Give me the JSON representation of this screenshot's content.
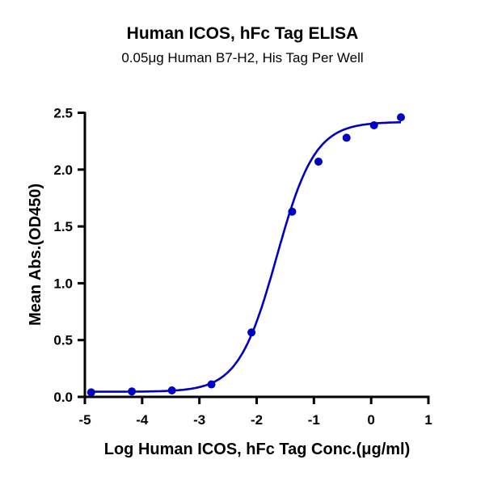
{
  "chart_data": {
    "type": "scatter",
    "title": "Human ICOS, hFc Tag ELISA",
    "subtitle": "0.05μg Human B7-H2, His Tag Per Well",
    "xlabel": "Log Human ICOS, hFc Tag Conc.(μg/ml)",
    "ylabel": "Mean Abs.(OD450)",
    "xlim": [
      -5,
      1
    ],
    "ylim": [
      0,
      2.5
    ],
    "xticks": [
      "-5",
      "-4",
      "-3",
      "-2",
      "-1",
      "0",
      "1"
    ],
    "yticks": [
      "0.0",
      "0.5",
      "1.0",
      "1.5",
      "2.0",
      "2.5"
    ],
    "grid": false,
    "color": "#0000c0",
    "series": [
      {
        "x": [
          -4.89,
          -4.18,
          -3.48,
          -2.79,
          -2.09,
          -1.38,
          -0.92,
          -0.43,
          0.05,
          0.52
        ],
        "y": [
          0.04,
          0.048,
          0.057,
          0.11,
          0.567,
          1.63,
          2.07,
          2.28,
          2.39,
          2.46
        ]
      }
    ],
    "fit_curve": {
      "type": "four-parameter logistic",
      "bottom": 0.045,
      "top": 2.42,
      "logEC50": -1.65,
      "hill": 1.3
    }
  }
}
